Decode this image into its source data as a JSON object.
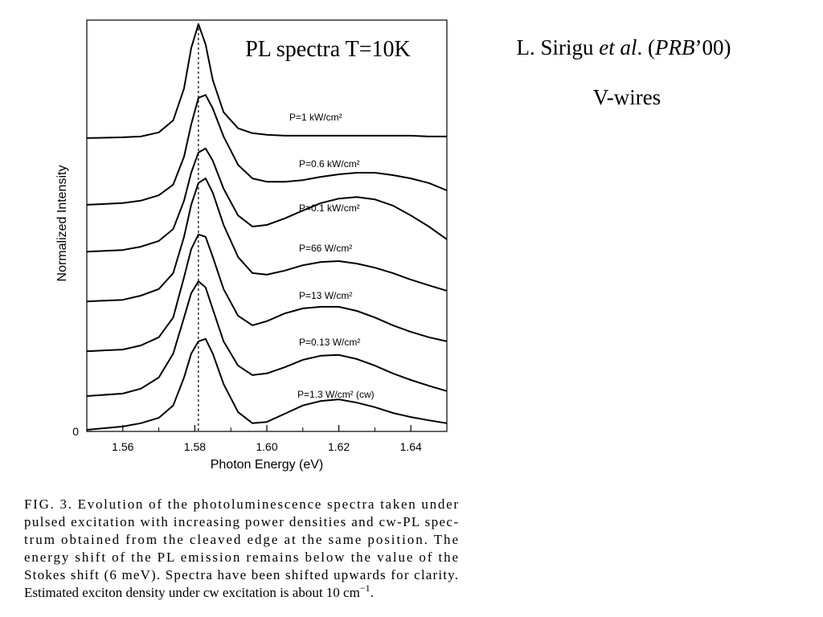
{
  "chart_data": {
    "type": "line",
    "title": "PL spectra T=10K",
    "xlabel": "Photon Energy (eV)",
    "ylabel": "Normalized Intensity",
    "xlim": [
      1.55,
      1.65
    ],
    "ylim": [
      0,
      10
    ],
    "xticks": [
      1.56,
      1.58,
      {
        "value": 1.6,
        "label": "1.60"
      },
      1.62,
      1.64
    ],
    "xminor_ticks": [
      1.57,
      1.59,
      1.61,
      1.63
    ],
    "yticks": [
      0
    ],
    "vline": 1.581,
    "color": "#000000",
    "x": [
      1.55,
      1.56,
      1.565,
      1.57,
      1.574,
      1.577,
      1.579,
      1.581,
      1.583,
      1.585,
      1.588,
      1.592,
      1.596,
      1.6,
      1.605,
      1.61,
      1.615,
      1.62,
      1.625,
      1.63,
      1.635,
      1.64,
      1.645,
      1.65
    ],
    "series": [
      {
        "name": "P=1 kW/cm²",
        "color": "#000000",
        "values": [
          7.13,
          7.15,
          7.17,
          7.27,
          7.56,
          8.34,
          9.32,
          9.9,
          9.41,
          8.54,
          7.76,
          7.37,
          7.25,
          7.21,
          7.19,
          7.19,
          7.19,
          7.19,
          7.19,
          7.19,
          7.19,
          7.19,
          7.17,
          7.17
        ]
      },
      {
        "name": "P=0.6 kW/cm²",
        "color": "#000000",
        "values": [
          5.51,
          5.55,
          5.61,
          5.74,
          6.0,
          6.68,
          7.46,
          8.11,
          8.18,
          7.85,
          7.17,
          6.48,
          6.15,
          6.07,
          6.07,
          6.11,
          6.19,
          6.25,
          6.29,
          6.29,
          6.23,
          6.15,
          6.04,
          5.86
        ]
      },
      {
        "name": "P=0.1 kW/cm²",
        "color": "#000000",
        "values": [
          4.37,
          4.41,
          4.49,
          4.63,
          4.92,
          5.61,
          6.29,
          6.78,
          6.88,
          6.58,
          5.9,
          5.25,
          4.98,
          5.02,
          5.18,
          5.37,
          5.55,
          5.66,
          5.7,
          5.64,
          5.49,
          5.25,
          4.98,
          4.67
        ]
      },
      {
        "name": "P=66 W/cm²",
        "color": "#000000",
        "values": [
          3.16,
          3.2,
          3.3,
          3.46,
          3.85,
          4.73,
          5.51,
          6.04,
          6.15,
          5.8,
          5.02,
          4.24,
          3.85,
          3.81,
          3.91,
          4.04,
          4.12,
          4.14,
          4.08,
          3.98,
          3.85,
          3.69,
          3.55,
          3.42
        ]
      },
      {
        "name": "P=13 W/cm²",
        "color": "#000000",
        "values": [
          1.95,
          1.99,
          2.09,
          2.29,
          2.77,
          3.75,
          4.43,
          4.79,
          4.73,
          4.24,
          3.46,
          2.81,
          2.58,
          2.68,
          2.87,
          2.99,
          3.03,
          3.03,
          2.93,
          2.77,
          2.58,
          2.42,
          2.29,
          2.19
        ]
      },
      {
        "name": "P=0.13 W/cm²",
        "color": "#000000",
        "values": [
          0.86,
          0.92,
          1.04,
          1.31,
          1.89,
          2.77,
          3.36,
          3.65,
          3.5,
          2.97,
          2.19,
          1.6,
          1.37,
          1.41,
          1.56,
          1.74,
          1.84,
          1.86,
          1.76,
          1.6,
          1.41,
          1.25,
          1.11,
          0.98
        ]
      },
      {
        "name": "P=1.3 W/cm² (cw)",
        "color": "#000000",
        "values": [
          0.04,
          0.12,
          0.2,
          0.33,
          0.63,
          1.31,
          1.89,
          2.19,
          2.25,
          1.89,
          1.15,
          0.47,
          0.2,
          0.23,
          0.43,
          0.63,
          0.74,
          0.78,
          0.7,
          0.59,
          0.45,
          0.35,
          0.27,
          0.2
        ]
      }
    ]
  },
  "citation": {
    "author": "L. Sirigu ",
    "etal": "et al",
    "mid": ". (",
    "journal": "PRB",
    "year": "’00)"
  },
  "subtitle": "V-wires",
  "caption": {
    "lines": [
      "FIG. 3. Evolution of the photoluminescence spectra taken under",
      "pulsed excitation with increasing power densities and cw-PL spec-",
      "trum obtained from the cleaved edge at the same position. The",
      "energy shift of the PL emission remains below the value of the",
      "Stokes shift (6 meV). Spectra have been shifted upwards for clarity."
    ],
    "last_line": "Estimated exciton density under cw excitation is about 10 cm",
    "last_sup": "−1",
    "last_end": "."
  }
}
